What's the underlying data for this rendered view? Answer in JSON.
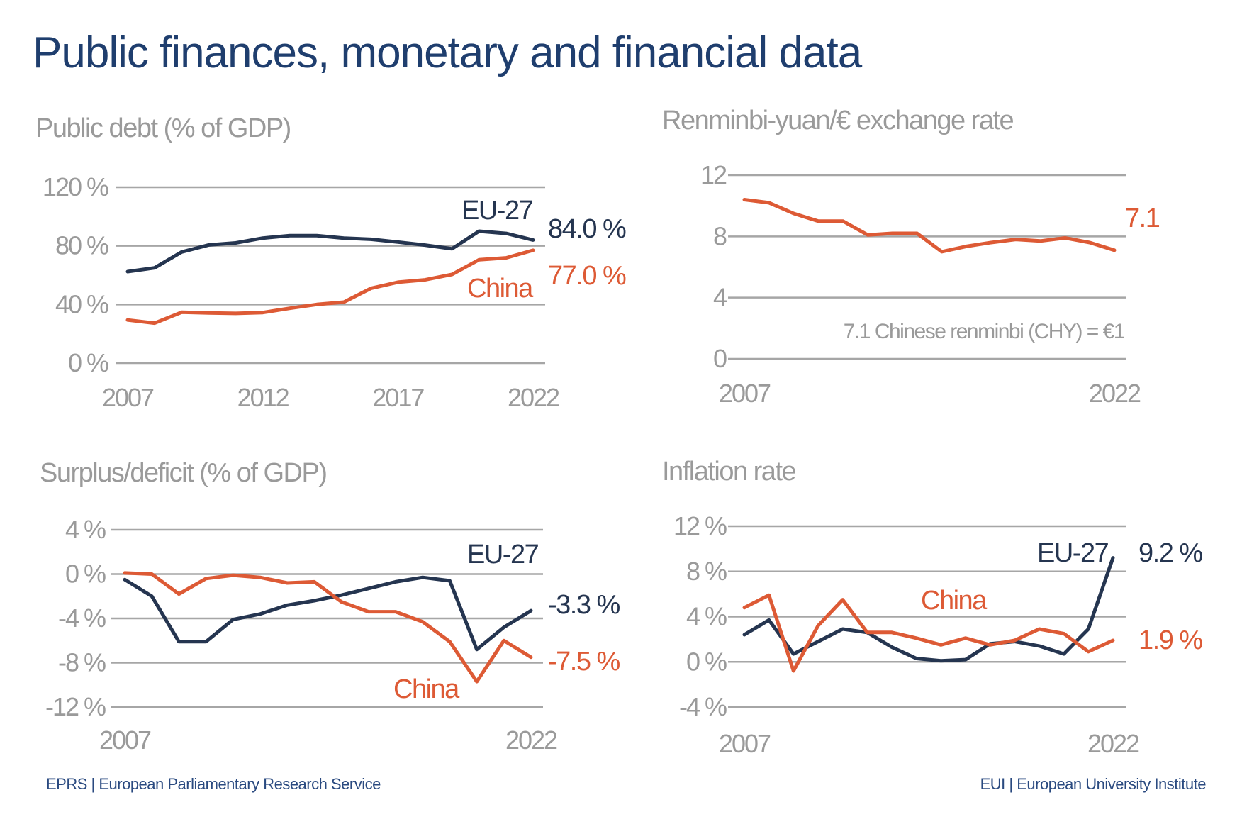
{
  "title": "Public finances, monetary and financial data",
  "colors": {
    "eu": "#253550",
    "china": "#dd5a35",
    "title": "#1f3e6e",
    "axis_text": "#9a9a9a",
    "footer": "#2a4a80"
  },
  "footer": {
    "left": "EPRS | European Parliamentary Research Service",
    "right": "EUI | European University Institute"
  },
  "chart_data": [
    {
      "type": "line",
      "title": "Public debt (% of GDP)",
      "ylim": [
        0,
        120
      ],
      "yticks": [
        "0 %",
        "40 %",
        "80 %",
        "120 %"
      ],
      "ytick_values": [
        0,
        40,
        80,
        120
      ],
      "xtick_labels": [
        "2007",
        "2012",
        "2017",
        "2022"
      ],
      "xtick_values": [
        2007,
        2012,
        2017,
        2022
      ],
      "grid": true,
      "x": [
        2007,
        2008,
        2009,
        2010,
        2011,
        2012,
        2013,
        2014,
        2015,
        2016,
        2017,
        2018,
        2019,
        2020,
        2021,
        2022
      ],
      "series": [
        {
          "name": "EU-27",
          "color": "#253550",
          "end_label": "84.0 %",
          "values": [
            62.4,
            65,
            75.8,
            80.6,
            82,
            85.3,
            87,
            87,
            85.3,
            84.5,
            82.6,
            80.5,
            78,
            90,
            88.5,
            84.0
          ]
        },
        {
          "name": "China",
          "color": "#dd5a35",
          "end_label": "77.0 %",
          "values": [
            29.4,
            27.3,
            34.7,
            34.2,
            33.9,
            34.5,
            37.4,
            40,
            41.6,
            51,
            55.2,
            56.8,
            60.5,
            70.5,
            71.8,
            77.0
          ]
        }
      ]
    },
    {
      "type": "line",
      "title": "Renminbi-yuan/€ exchange rate",
      "ylim": [
        0,
        12
      ],
      "yticks": [
        "0",
        "4",
        "8",
        "12"
      ],
      "ytick_values": [
        0,
        4,
        8,
        12
      ],
      "xtick_labels": [
        "2007",
        "2022"
      ],
      "xtick_values": [
        2007,
        2022
      ],
      "grid": true,
      "annotation": "7.1 Chinese renminbi (CHY) = €1",
      "x": [
        2007,
        2008,
        2009,
        2010,
        2011,
        2012,
        2013,
        2014,
        2015,
        2016,
        2017,
        2018,
        2019,
        2020,
        2021,
        2022
      ],
      "series": [
        {
          "color": "#dd5a35",
          "end_label": "7.1",
          "values": [
            10.4,
            10.2,
            9.5,
            9.0,
            9.0,
            8.1,
            8.2,
            8.2,
            7.0,
            7.35,
            7.6,
            7.8,
            7.7,
            7.9,
            7.6,
            7.1
          ]
        }
      ]
    },
    {
      "type": "line",
      "title": "Surplus/deficit (% of GDP)",
      "ylim": [
        -12,
        4
      ],
      "yticks": [
        "-12 %",
        "-8 %",
        "-4 %",
        "0 %",
        "4 %"
      ],
      "ytick_values": [
        -12,
        -8,
        -4,
        0,
        4
      ],
      "xtick_labels": [
        "2007",
        "2022"
      ],
      "xtick_values": [
        2007,
        2022
      ],
      "grid": true,
      "x": [
        2007,
        2008,
        2009,
        2010,
        2011,
        2012,
        2013,
        2014,
        2015,
        2016,
        2017,
        2018,
        2019,
        2020,
        2021,
        2022
      ],
      "series": [
        {
          "name": "EU-27",
          "color": "#253550",
          "end_label": "-3.3 %",
          "values": [
            -0.5,
            -2.0,
            -6.1,
            -6.1,
            -4.1,
            -3.6,
            -2.8,
            -2.4,
            -1.9,
            -1.3,
            -0.7,
            -0.3,
            -0.6,
            -6.8,
            -4.8,
            -3.3
          ]
        },
        {
          "name": "China",
          "color": "#dd5a35",
          "end_label": "-7.5 %",
          "values": [
            0.1,
            0.0,
            -1.8,
            -0.4,
            -0.1,
            -0.3,
            -0.8,
            -0.7,
            -2.5,
            -3.4,
            -3.4,
            -4.3,
            -6.1,
            -9.7,
            -6.0,
            -7.5
          ]
        }
      ]
    },
    {
      "type": "line",
      "title": "Inflation rate",
      "ylim": [
        -4,
        12
      ],
      "yticks": [
        "-4 %",
        "0 %",
        "4 %",
        "8 %",
        "12 %"
      ],
      "ytick_values": [
        -4,
        0,
        4,
        8,
        12
      ],
      "xtick_labels": [
        "2007",
        "2022"
      ],
      "xtick_values": [
        2007,
        2022
      ],
      "grid": true,
      "x": [
        2007,
        2008,
        2009,
        2010,
        2011,
        2012,
        2013,
        2014,
        2015,
        2016,
        2017,
        2018,
        2019,
        2020,
        2021,
        2022
      ],
      "series": [
        {
          "name": "EU-27",
          "color": "#253550",
          "end_label": "9.2 %",
          "values": [
            2.4,
            3.7,
            0.7,
            1.8,
            2.9,
            2.6,
            1.3,
            0.3,
            0.1,
            0.2,
            1.6,
            1.8,
            1.4,
            0.7,
            2.9,
            9.2
          ]
        },
        {
          "name": "China",
          "color": "#dd5a35",
          "end_label": "1.9 %",
          "values": [
            4.8,
            5.9,
            -0.8,
            3.2,
            5.5,
            2.6,
            2.6,
            2.1,
            1.5,
            2.1,
            1.5,
            1.9,
            2.9,
            2.5,
            0.9,
            1.9
          ]
        }
      ]
    }
  ]
}
